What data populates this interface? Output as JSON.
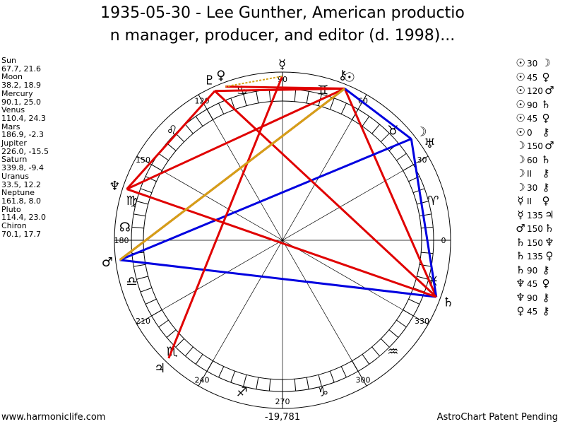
{
  "title": {
    "line1": "1935-05-30 - Lee Gunther, American productio",
    "line2": "n manager, producer, and editor (d. 1998)..."
  },
  "planets": [
    {
      "name": "Sun",
      "pos": "67.7, 21.6",
      "lon": 67.7,
      "glyph": "☉"
    },
    {
      "name": "Moon",
      "pos": "38.2, 18.9",
      "lon": 38.2,
      "glyph": "☽"
    },
    {
      "name": "Mercury",
      "pos": "90.1, 25.0",
      "lon": 90.1,
      "glyph": "☿"
    },
    {
      "name": "Venus",
      "pos": "110.4, 24.3",
      "lon": 110.4,
      "glyph": "♀"
    },
    {
      "name": "Mars",
      "pos": "186.9, -2.3",
      "lon": 186.9,
      "glyph": "♂"
    },
    {
      "name": "Jupiter",
      "pos": "226.0, -15.5",
      "lon": 226.0,
      "glyph": "♃"
    },
    {
      "name": "Saturn",
      "pos": "339.8, -9.4",
      "lon": 339.8,
      "glyph": "♄"
    },
    {
      "name": "Uranus",
      "pos": "33.5, 12.2",
      "lon": 33.5,
      "glyph": "♅"
    },
    {
      "name": "Neptune",
      "pos": "161.8, 8.0",
      "lon": 161.8,
      "glyph": "♆"
    },
    {
      "name": "Pluto",
      "pos": "114.4, 23.0",
      "lon": 114.4,
      "glyph": "♇"
    },
    {
      "name": "Chiron",
      "pos": "70.1, 17.7",
      "lon": 70.1,
      "glyph": "⚷"
    }
  ],
  "aspects": [
    {
      "p1": "☉",
      "num": "30",
      "p2": "☽"
    },
    {
      "p1": "☉",
      "num": "45",
      "p2": "♀"
    },
    {
      "p1": "☉",
      "num": "120",
      "p2": "♂"
    },
    {
      "p1": "☉",
      "num": "90",
      "p2": "♄"
    },
    {
      "p1": "☉",
      "num": "45",
      "p2": "♀"
    },
    {
      "p1": "☉",
      "num": "0",
      "p2": "⚷"
    },
    {
      "p1": "☽",
      "num": "150",
      "p2": "♂"
    },
    {
      "p1": "☽",
      "num": "60",
      "p2": "♄"
    },
    {
      "p1": "☽",
      "num": "II",
      "p2": "⚷"
    },
    {
      "p1": "☽",
      "num": "30",
      "p2": "⚷"
    },
    {
      "p1": "☿",
      "num": "II",
      "p2": "♀"
    },
    {
      "p1": "☿",
      "num": "135",
      "p2": "♃"
    },
    {
      "p1": "♂",
      "num": "150",
      "p2": "♄"
    },
    {
      "p1": "♄",
      "num": "150",
      "p2": "♆"
    },
    {
      "p1": "♄",
      "num": "135",
      "p2": "♀"
    },
    {
      "p1": "♄",
      "num": "90",
      "p2": "⚷"
    },
    {
      "p1": "♆",
      "num": "45",
      "p2": "♀"
    },
    {
      "p1": "♆",
      "num": "90",
      "p2": "⚷"
    },
    {
      "p1": "♀",
      "num": "45",
      "p2": "⚷"
    }
  ],
  "wheel": {
    "degree_labels": [
      "0",
      "30",
      "60",
      "90",
      "120",
      "150",
      "180",
      "210",
      "240",
      "270",
      "300",
      "330"
    ],
    "signs": [
      {
        "glyph": "♈",
        "lon": 15
      },
      {
        "glyph": "♉",
        "lon": 45
      },
      {
        "glyph": "♊",
        "lon": 75
      },
      {
        "glyph": "♋",
        "lon": 105
      },
      {
        "glyph": "♌",
        "lon": 135
      },
      {
        "glyph": "♍",
        "lon": 165
      },
      {
        "glyph": "♎",
        "lon": 195
      },
      {
        "glyph": "♏",
        "lon": 225
      },
      {
        "glyph": "♐",
        "lon": 255
      },
      {
        "glyph": "♑",
        "lon": 285
      },
      {
        "glyph": "♒",
        "lon": 315
      },
      {
        "glyph": "♓",
        "lon": 345
      }
    ],
    "node": {
      "glyph": "☊",
      "lon": 175
    },
    "aspect_lines": [
      {
        "a": 67.7,
        "b": 339.8,
        "color": "#e00000"
      },
      {
        "a": 67.7,
        "b": 186.9,
        "color": "#e00000"
      },
      {
        "a": 67.7,
        "b": 110.4,
        "color": "#e00000"
      },
      {
        "a": 67.7,
        "b": 114.4,
        "color": "#e00000"
      },
      {
        "a": 67.7,
        "b": 38.2,
        "color": "#0000e0"
      },
      {
        "a": 38.2,
        "b": 186.9,
        "color": "#0000e0"
      },
      {
        "a": 38.2,
        "b": 339.8,
        "color": "#0000e0"
      },
      {
        "a": 186.9,
        "b": 339.8,
        "color": "#0000e0"
      },
      {
        "a": 161.8,
        "b": 339.8,
        "color": "#e00000"
      },
      {
        "a": 161.8,
        "b": 114.4,
        "color": "#e00000"
      },
      {
        "a": 161.8,
        "b": 67.7,
        "color": "#e00000"
      },
      {
        "a": 114.4,
        "b": 339.8,
        "color": "#e00000"
      },
      {
        "a": 90.1,
        "b": 226.0,
        "color": "#e00000"
      },
      {
        "a": 67.7,
        "b": 186.9,
        "color": "#d4a017"
      },
      {
        "a": 90.1,
        "b": 110.4,
        "color": "#d4a017",
        "dash": true
      }
    ]
  },
  "footer": {
    "left": "www.harmoniclife.com",
    "center": "-19,781",
    "right": "AstroChart Patent Pending"
  }
}
